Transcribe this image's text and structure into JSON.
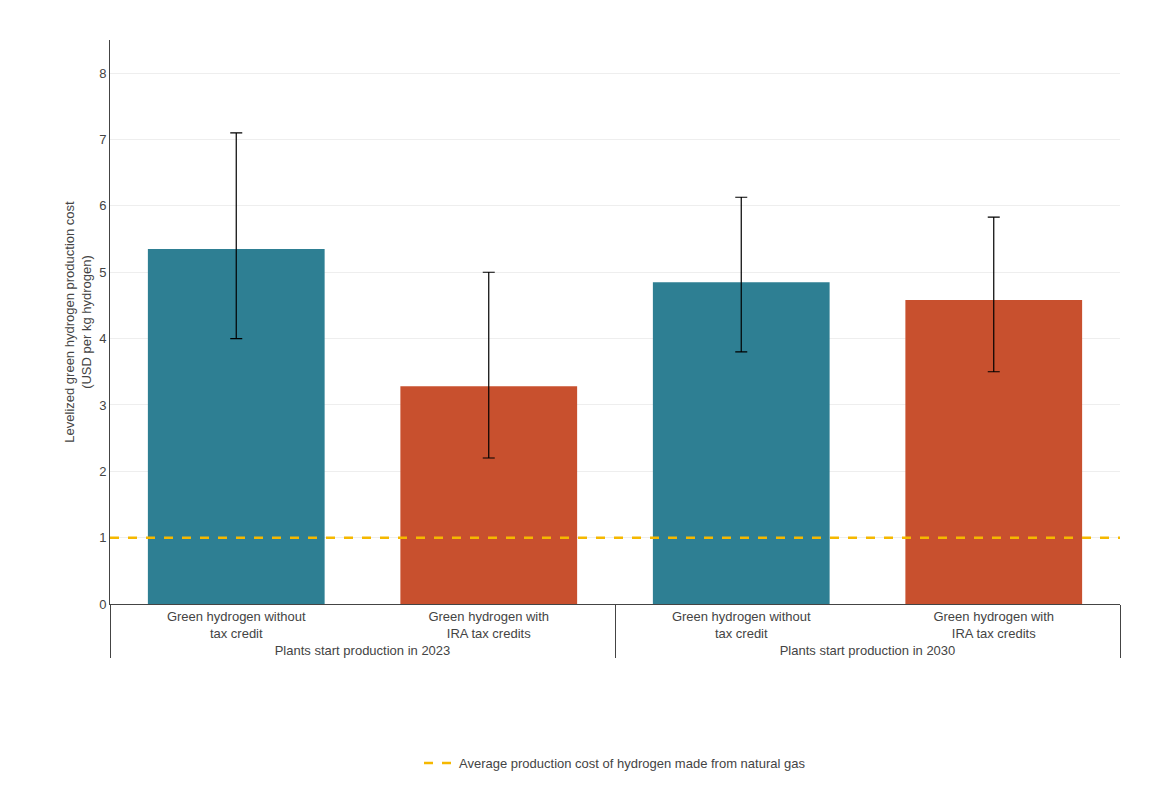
{
  "chart_data": {
    "type": "bar",
    "categories": [
      "Green hydrogen without\ntax credit",
      "Green hydrogen with\nIRA tax credits",
      "Green hydrogen without\ntax credit",
      "Green hydrogen with\nIRA tax credits"
    ],
    "groups": [
      "Plants start production in 2023",
      "Plants start production in 2023",
      "Plants start production in 2030",
      "Plants start production in 2030"
    ],
    "values": [
      5.35,
      3.28,
      4.85,
      4.58
    ],
    "errors_low": [
      1.35,
      1.08,
      1.05,
      1.08
    ],
    "errors_high": [
      1.75,
      1.72,
      1.28,
      1.25
    ],
    "colors": [
      "#2e7f93",
      "#c8502e",
      "#2e7f93",
      "#c8502e"
    ],
    "ylabel": "Levelized green hydrogen production cost\n(USD per kg hydrogen)",
    "ylim": [
      0,
      8.5
    ],
    "yticks": [
      0,
      1,
      2,
      3,
      4,
      5,
      6,
      7,
      8
    ],
    "grid": true,
    "legend": "bottom",
    "reference_line": {
      "value": 1.0,
      "name": "Average production cost of hydrogen made from natural gas",
      "color": "#f5b800",
      "line_style": "dashed"
    }
  }
}
